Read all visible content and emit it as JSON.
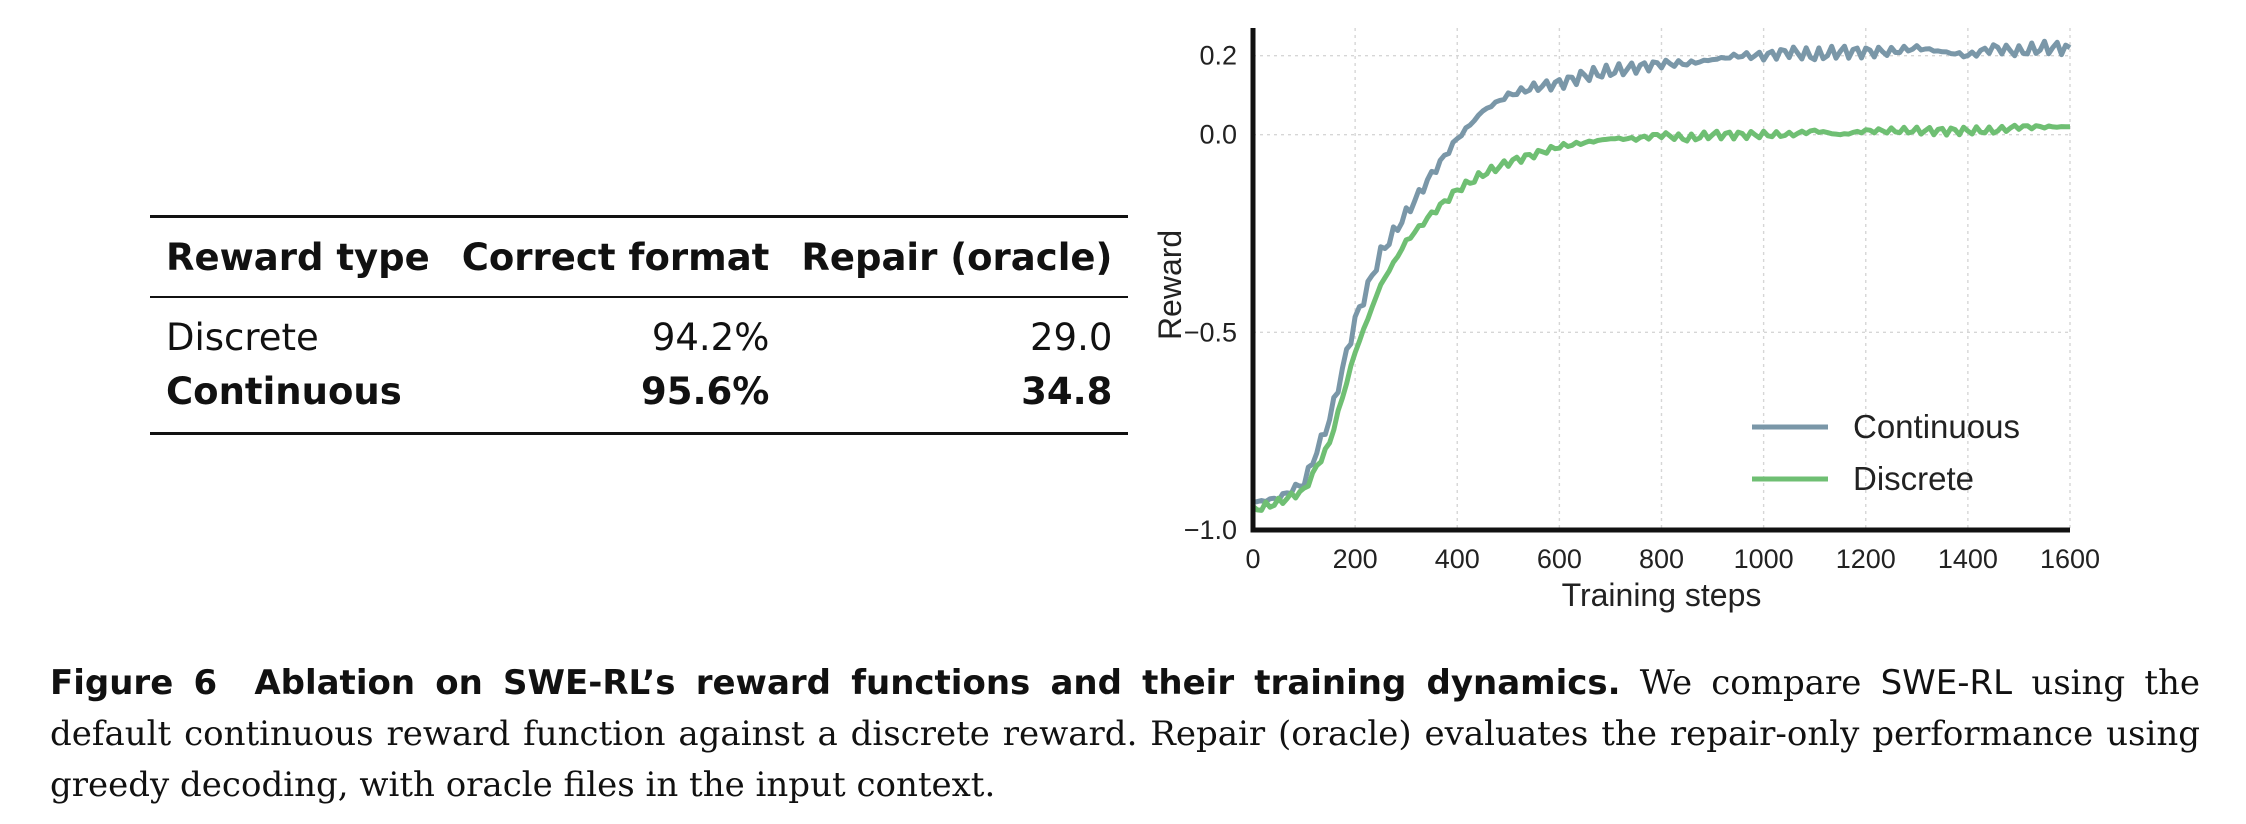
{
  "table": {
    "headers": [
      "Reward type",
      "Correct format",
      "Repair (oracle)"
    ],
    "rows": [
      {
        "type": "Discrete",
        "format": "94.2%",
        "repair": "29.0",
        "bold": false
      },
      {
        "type": "Continuous",
        "format": "95.6%",
        "repair": "34.8",
        "bold": true
      }
    ]
  },
  "chart_data": {
    "type": "line",
    "title": "",
    "xlabel": "Training steps",
    "ylabel": "Reward",
    "xlim": [
      0,
      1600
    ],
    "ylim": [
      -1.0,
      0.27
    ],
    "xticks": [
      0,
      200,
      400,
      600,
      800,
      1000,
      1200,
      1400,
      1600
    ],
    "yticks": [
      {
        "value": -1.0,
        "label": "−1.0"
      },
      {
        "value": -0.5,
        "label": "−0.5"
      },
      {
        "value": 0.0,
        "label": "0.0"
      },
      {
        "value": 0.2,
        "label": "0.2"
      }
    ],
    "grid": true,
    "legend_position": "bottom-right",
    "series": [
      {
        "name": "Continuous",
        "color": "#7a97a8",
        "x": [
          0,
          50,
          100,
          150,
          200,
          250,
          300,
          350,
          400,
          450,
          500,
          550,
          600,
          650,
          700,
          750,
          800,
          850,
          900,
          950,
          1000,
          1050,
          1100,
          1150,
          1200,
          1250,
          1300,
          1350,
          1400,
          1450,
          1500,
          1550,
          1600
        ],
        "y": [
          -0.93,
          -0.92,
          -0.88,
          -0.72,
          -0.47,
          -0.3,
          -0.2,
          -0.1,
          -0.01,
          0.06,
          0.1,
          0.12,
          0.13,
          0.15,
          0.16,
          0.17,
          0.18,
          0.18,
          0.19,
          0.2,
          0.2,
          0.21,
          0.2,
          0.21,
          0.21,
          0.21,
          0.22,
          0.21,
          0.2,
          0.22,
          0.21,
          0.22,
          0.22
        ]
      },
      {
        "name": "Discrete",
        "color": "#6fbf73",
        "x": [
          0,
          50,
          100,
          150,
          200,
          250,
          300,
          350,
          400,
          450,
          500,
          550,
          600,
          650,
          700,
          750,
          800,
          850,
          900,
          950,
          1000,
          1050,
          1100,
          1150,
          1200,
          1250,
          1300,
          1350,
          1400,
          1450,
          1500,
          1550,
          1600
        ],
        "y": [
          -0.95,
          -0.93,
          -0.9,
          -0.78,
          -0.55,
          -0.38,
          -0.27,
          -0.2,
          -0.14,
          -0.1,
          -0.07,
          -0.05,
          -0.03,
          -0.02,
          -0.01,
          -0.01,
          0.0,
          -0.01,
          0.0,
          0.0,
          0.0,
          0.0,
          0.01,
          0.0,
          0.01,
          0.01,
          0.01,
          0.01,
          0.01,
          0.01,
          0.02,
          0.02,
          0.02
        ]
      }
    ]
  },
  "caption": {
    "label": "Figure 6",
    "title": "Ablation on SWE-RL’s reward functions and their training dynamics.",
    "text_before": "We compare",
    "method": "SWE-RL",
    "text_after": "using the default continuous reward function against a discrete reward. Repair (oracle) evaluates the repair-only performance using greedy decoding, with oracle files in the input context."
  }
}
